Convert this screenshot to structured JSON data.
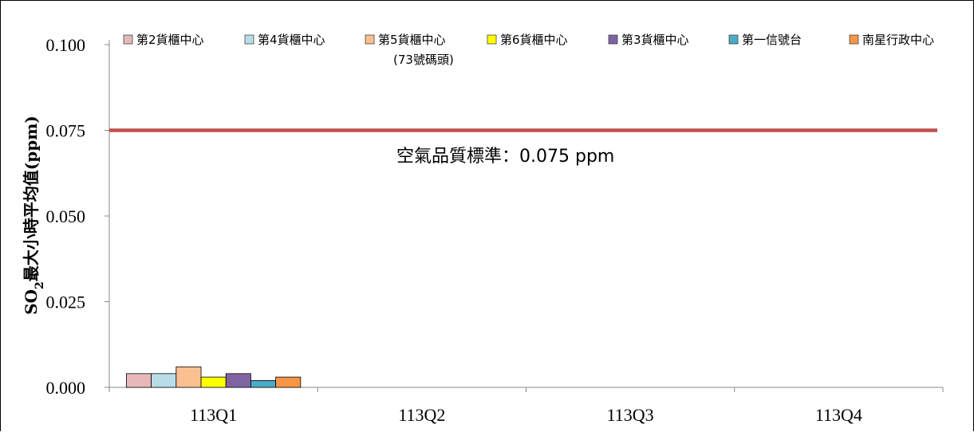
{
  "chart_data": {
    "type": "bar",
    "categories": [
      "113Q1",
      "113Q2",
      "113Q3",
      "113Q4"
    ],
    "ylabel": "SO₂最大小時平均值(ppm)",
    "ylabel_prefix": "SO",
    "ylabel_subscript": "2",
    "ylabel_suffix": "最大小時平均值(ppm)",
    "ylim": [
      0,
      0.1
    ],
    "yticks": [
      "0.000",
      "0.025",
      "0.050",
      "0.075",
      "0.100"
    ],
    "ytick_values": [
      0,
      0.025,
      0.05,
      0.075,
      0.1
    ],
    "grid": false,
    "legend_position": "top",
    "series": [
      {
        "name": "第2貨櫃中心",
        "color": "#E6B9B8",
        "values": [
          0.004,
          null,
          null,
          null
        ]
      },
      {
        "name": "第4貨櫃中心",
        "color": "#B7DEE8",
        "values": [
          0.004,
          null,
          null,
          null
        ]
      },
      {
        "name": "第5貨櫃中心(73號碼頭)",
        "color": "#FAC090",
        "values": [
          0.006,
          null,
          null,
          null
        ]
      },
      {
        "name": "第6貨櫃中心",
        "color": "#FFFF00",
        "values": [
          0.003,
          null,
          null,
          null
        ]
      },
      {
        "name": "第3貨櫃中心",
        "color": "#8064A2",
        "values": [
          0.004,
          null,
          null,
          null
        ]
      },
      {
        "name": "第一信號台",
        "color": "#4BACC6",
        "values": [
          0.002,
          null,
          null,
          null
        ]
      },
      {
        "name": "南星行政中心",
        "color": "#F79646",
        "values": [
          0.003,
          null,
          null,
          null
        ]
      }
    ],
    "legend_lines": [
      [
        "第2貨櫃中心"
      ],
      [
        "第4貨櫃中心"
      ],
      [
        "第5貨櫃中心",
        "(73號碼頭)"
      ],
      [
        "第6貨櫃中心"
      ],
      [
        "第3貨櫃中心"
      ],
      [
        "第一信號台"
      ],
      [
        "南星行政中心"
      ]
    ],
    "reference_line": {
      "value": 0.075,
      "color": "#C0504D",
      "label": "空氣品質標準：0.075 ppm"
    }
  }
}
